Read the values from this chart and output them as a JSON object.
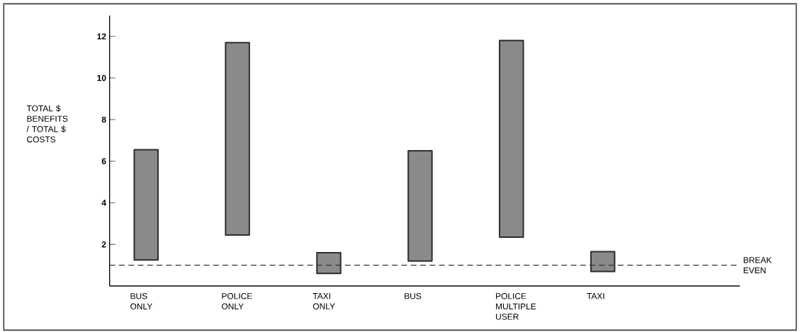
{
  "chart_data": {
    "type": "bar",
    "ylabel": "TOTAL $ BENEFITS / TOTAL $ COSTS",
    "categories": [
      "BUS ONLY",
      "POLICE ONLY",
      "TAXI ONLY",
      "BUS",
      "POLICE MULTIPLE USER",
      "TAXI"
    ],
    "base": [
      1.25,
      2.45,
      0.6,
      1.2,
      2.35,
      0.7
    ],
    "values": [
      5.3,
      9.25,
      1.0,
      5.3,
      9.45,
      0.95
    ],
    "color": "#8a8a8a",
    "ylim": [
      0,
      13
    ],
    "yticks": [
      2,
      4,
      6,
      8,
      10,
      12
    ],
    "grid": false,
    "ref_lines": [
      {
        "axis": "y",
        "value": 1,
        "label": "BREAK EVEN",
        "line_style": "dashed"
      }
    ]
  }
}
